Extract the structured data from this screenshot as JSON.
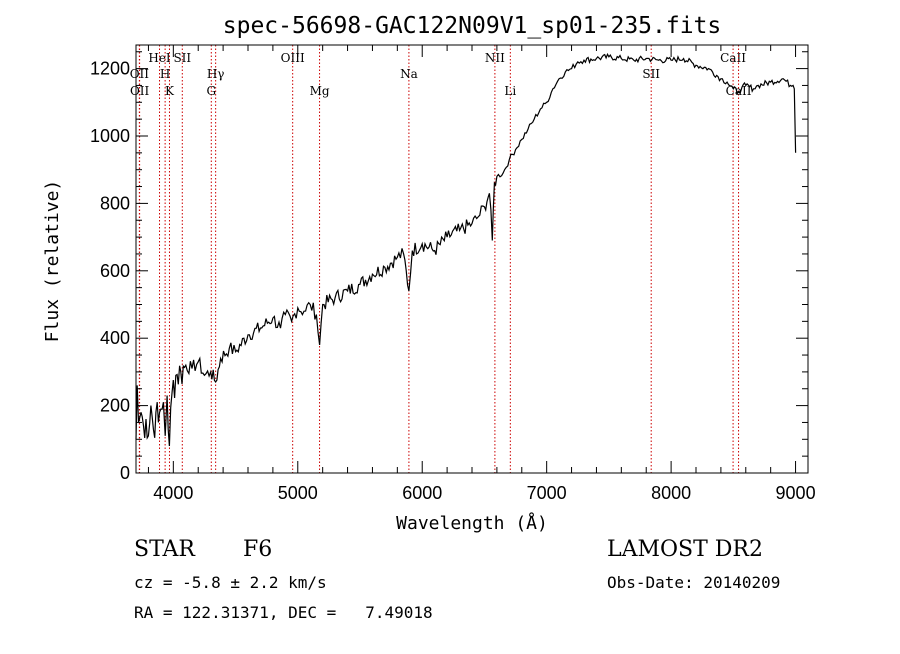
{
  "chart_data": {
    "type": "line",
    "title": "spec-56698-GAC122N09V1_sp01-235.fits",
    "xlabel": "Wavelength (Å)",
    "ylabel": "Flux (relative)",
    "xlim": [
      3700,
      9100
    ],
    "ylim": [
      0,
      1270
    ],
    "xticks": [
      "4000",
      "5000",
      "6000",
      "7000",
      "8000",
      "9000"
    ],
    "yticks": [
      "0",
      "200",
      "400",
      "600",
      "800",
      "1000",
      "1200"
    ],
    "grid": false,
    "series": [
      {
        "x": [
          3700,
          3710,
          3720,
          3740,
          3760,
          3780,
          3800,
          3820,
          3840,
          3860,
          3880,
          3900,
          3920,
          3935,
          3950,
          3968,
          3990,
          4020,
          4060,
          4100,
          4150,
          4200,
          4250,
          4300,
          4340,
          4380,
          4450,
          4500,
          4600,
          4700,
          4800,
          4861,
          4900,
          4950,
          5000,
          5050,
          5100,
          5150,
          5175,
          5200,
          5300,
          5400,
          5500,
          5600,
          5700,
          5800,
          5850,
          5893,
          5920,
          6000,
          6100,
          6200,
          6300,
          6400,
          6450,
          6500,
          6540,
          6563,
          6580,
          6600,
          6650,
          6700,
          6750,
          6800,
          6850,
          6900,
          6950,
          7000,
          7050,
          7100,
          7150,
          7200,
          7250,
          7300,
          7400,
          7500,
          7600,
          7700,
          7800,
          7900,
          8000,
          8100,
          8200,
          8300,
          8400,
          8450,
          8500,
          8542,
          8570,
          8600,
          8662,
          8700,
          8800,
          8900,
          8960,
          8980,
          8990,
          9000
        ],
        "y": [
          100,
          260,
          150,
          180,
          140,
          160,
          110,
          200,
          130,
          180,
          150,
          190,
          210,
          110,
          230,
          80,
          240,
          290,
          300,
          320,
          310,
          330,
          290,
          300,
          270,
          340,
          370,
          360,
          410,
          430,
          460,
          430,
          470,
          450,
          490,
          480,
          500,
          470,
          380,
          500,
          520,
          540,
          560,
          590,
          610,
          640,
          650,
          540,
          660,
          680,
          660,
          700,
          720,
          740,
          760,
          790,
          830,
          690,
          860,
          880,
          890,
          930,
          960,
          990,
          1020,
          1050,
          1080,
          1100,
          1140,
          1170,
          1190,
          1200,
          1220,
          1225,
          1230,
          1235,
          1230,
          1225,
          1230,
          1225,
          1225,
          1230,
          1210,
          1200,
          1170,
          1160,
          1140,
          1130,
          1145,
          1150,
          1140,
          1150,
          1160,
          1170,
          1150,
          1150,
          1140,
          950
        ]
      }
    ],
    "lines": [
      {
        "label": "OII",
        "x": 3727,
        "pos": "upper"
      },
      {
        "label": "OII",
        "x": 3729,
        "pos": "lower"
      },
      {
        "label": "HeI",
        "x": 3889,
        "pos": "top"
      },
      {
        "label": "H",
        "x": 3934,
        "pos": "upper"
      },
      {
        "label": "K",
        "x": 3969,
        "pos": "lower"
      },
      {
        "label": "SII",
        "x": 4072,
        "pos": "top"
      },
      {
        "label": "Hγ",
        "x": 4340,
        "pos": "upper"
      },
      {
        "label": "G",
        "x": 4305,
        "pos": "lower"
      },
      {
        "label": "OIII",
        "x": 4959,
        "pos": "top"
      },
      {
        "label": "Mg",
        "x": 5175,
        "pos": "lower"
      },
      {
        "label": "Na",
        "x": 5893,
        "pos": "upper"
      },
      {
        "label": "NII",
        "x": 6584,
        "pos": "top"
      },
      {
        "label": "Li",
        "x": 6708,
        "pos": "lower"
      },
      {
        "label": "SII",
        "x": 7840,
        "pos": "upper"
      },
      {
        "label": "CaII",
        "x": 8498,
        "pos": "top"
      },
      {
        "label": "CaII",
        "x": 8542,
        "pos": "lower"
      }
    ]
  },
  "info": {
    "class_label": "STAR",
    "subclass": "F6",
    "survey": "LAMOST DR2",
    "cz": "cz = -5.8 ± 2.2 km/s",
    "obs_date": "Obs-Date: 20140209",
    "coords": "RA = 122.31371, DEC =   7.49018"
  },
  "colors": {
    "spectrum": "#000000",
    "line_markers": "#cc0000",
    "background": "#ffffff"
  }
}
